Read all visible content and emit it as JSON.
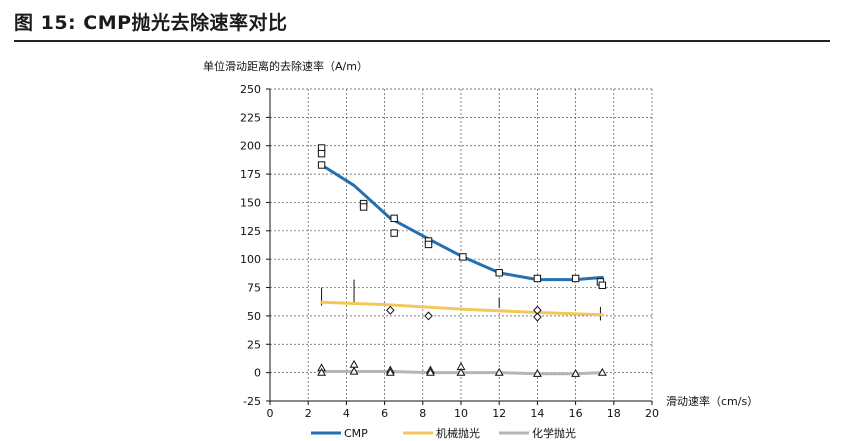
{
  "figure": {
    "title": "图 15: CMP抛光去除速率对比"
  },
  "chart_data": {
    "type": "line",
    "title": "",
    "ylabel": "单位滑动距离的去除速率（A/m）",
    "xlabel": "滑动速率（cm/s）",
    "xlim": [
      0,
      20
    ],
    "ylim": [
      -25,
      250
    ],
    "xticks": [
      0,
      2,
      4,
      6,
      8,
      10,
      12,
      14,
      16,
      18,
      20
    ],
    "yticks": [
      -25,
      0,
      25,
      50,
      75,
      100,
      125,
      150,
      175,
      200,
      225,
      250
    ],
    "grid": true,
    "legend_position": "bottom",
    "series": [
      {
        "name": "CMP",
        "color": "#2470b3",
        "line": {
          "x": [
            2.7,
            4.4,
            6.3,
            8.4,
            10.1,
            12,
            14,
            16,
            17.4
          ],
          "y": [
            183,
            165,
            136,
            117,
            102,
            88,
            82,
            82,
            84
          ]
        },
        "markers": {
          "shape": "square",
          "x": [
            2.7,
            2.7,
            2.7,
            4.9,
            4.9,
            6.5,
            6.5,
            8.3,
            8.3,
            10.1,
            12,
            14,
            16,
            17.3,
            17.4
          ],
          "y": [
            198,
            193,
            183,
            149,
            146,
            136,
            123,
            116,
            113,
            102,
            88,
            83,
            83,
            80,
            77
          ]
        }
      },
      {
        "name": "机械抛光",
        "color": "#f2c85b",
        "line": {
          "x": [
            2.7,
            6,
            10,
            14,
            17.4
          ],
          "y": [
            62,
            60,
            56,
            53,
            51
          ]
        },
        "markers": {
          "shape": "diamond",
          "x": [
            6.3,
            8.3,
            14,
            14
          ],
          "y": [
            55,
            50,
            55,
            49
          ]
        },
        "error_bars": [
          {
            "x": 2.7,
            "y1": 59,
            "y2": 75
          },
          {
            "x": 4.4,
            "y1": 61,
            "y2": 82
          },
          {
            "x": 12,
            "y1": 57,
            "y2": 66
          },
          {
            "x": 17.3,
            "y1": 46,
            "y2": 58
          }
        ]
      },
      {
        "name": "化学抛光",
        "color": "#b5b5b5",
        "line": {
          "x": [
            2.7,
            6.3,
            8.4,
            10,
            12,
            14,
            16,
            17.4
          ],
          "y": [
            1,
            1,
            0,
            0,
            0,
            -1,
            -1,
            0
          ]
        },
        "markers": {
          "shape": "triangle",
          "x": [
            2.7,
            2.7,
            4.4,
            4.4,
            6.3,
            6.3,
            8.4,
            8.4,
            10,
            10,
            12,
            14,
            16,
            17.4
          ],
          "y": [
            4,
            0,
            7,
            1,
            2,
            0,
            2,
            0,
            5,
            0,
            0,
            -1,
            -1,
            0
          ]
        }
      }
    ]
  }
}
